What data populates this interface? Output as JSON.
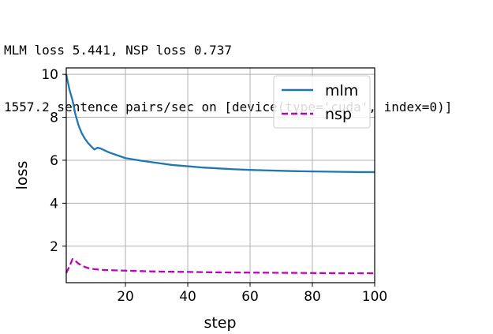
{
  "output": {
    "lines": [
      "MLM loss 5.441, NSP loss 0.737",
      "1557.2 sentence pairs/sec on [device(type='cuda', index=0)]"
    ]
  },
  "chart_data": {
    "type": "line",
    "xlabel": "step",
    "ylabel": "loss",
    "xlim": [
      1,
      100
    ],
    "ylim": [
      0.3,
      10.3
    ],
    "xticks": [
      20,
      40,
      60,
      80,
      100
    ],
    "yticks": [
      2,
      4,
      6,
      8,
      10
    ],
    "grid": true,
    "legend_position": "top-right",
    "series": [
      {
        "name": "mlm",
        "color": "#1f77b4",
        "style": "solid",
        "x": [
          1,
          2,
          3,
          4,
          5,
          6,
          7,
          8,
          9,
          10,
          11,
          12,
          13,
          15,
          18,
          20,
          25,
          30,
          35,
          40,
          45,
          50,
          55,
          60,
          65,
          70,
          75,
          80,
          85,
          90,
          95,
          100
        ],
        "y": [
          10.0,
          9.3,
          8.8,
          8.1,
          7.6,
          7.25,
          7.0,
          6.8,
          6.65,
          6.5,
          6.58,
          6.55,
          6.48,
          6.35,
          6.2,
          6.1,
          5.98,
          5.88,
          5.78,
          5.72,
          5.66,
          5.62,
          5.58,
          5.55,
          5.53,
          5.51,
          5.49,
          5.48,
          5.47,
          5.46,
          5.45,
          5.45
        ]
      },
      {
        "name": "nsp",
        "color": "#bf00bf",
        "style": "dashed",
        "x": [
          1,
          2,
          3,
          4,
          5,
          6,
          7,
          8,
          10,
          12,
          15,
          20,
          25,
          30,
          40,
          50,
          60,
          70,
          80,
          90,
          100
        ],
        "y": [
          0.75,
          1.05,
          1.4,
          1.3,
          1.18,
          1.1,
          1.03,
          0.98,
          0.93,
          0.9,
          0.88,
          0.86,
          0.84,
          0.82,
          0.8,
          0.78,
          0.77,
          0.76,
          0.75,
          0.74,
          0.74
        ]
      }
    ]
  }
}
